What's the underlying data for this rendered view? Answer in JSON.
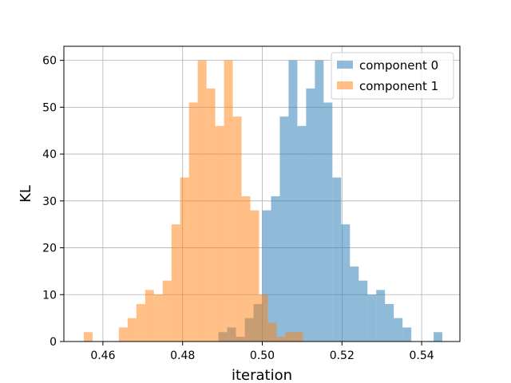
{
  "chart_data": {
    "type": "histogram",
    "title": "",
    "xlabel": "iteration",
    "ylabel": "KL",
    "xlim": [
      0.4502,
      0.5496
    ],
    "ylim": [
      0,
      63
    ],
    "xticks": [
      "0.46",
      "0.48",
      "0.50",
      "0.52",
      "0.54"
    ],
    "yticks": [
      "0",
      "10",
      "20",
      "30",
      "40",
      "50",
      "60"
    ],
    "grid": true,
    "legend_position": "upper right",
    "bin_width": 0.0022,
    "series": [
      {
        "name": "component 0",
        "color": "#1f77b4",
        "opacity": 0.5,
        "bins": [
          [
            0.489,
            0.4912,
            2
          ],
          [
            0.4912,
            0.4934,
            3
          ],
          [
            0.4934,
            0.4956,
            1
          ],
          [
            0.4956,
            0.4978,
            5
          ],
          [
            0.4978,
            0.5,
            8
          ],
          [
            0.5,
            0.5022,
            28
          ],
          [
            0.5022,
            0.5044,
            31
          ],
          [
            0.5044,
            0.5066,
            48
          ],
          [
            0.5066,
            0.5088,
            60
          ],
          [
            0.5088,
            0.511,
            46
          ],
          [
            0.511,
            0.5132,
            54
          ],
          [
            0.5132,
            0.5154,
            60
          ],
          [
            0.5154,
            0.5176,
            51
          ],
          [
            0.5176,
            0.5198,
            35
          ],
          [
            0.5198,
            0.522,
            25
          ],
          [
            0.522,
            0.5242,
            16
          ],
          [
            0.5242,
            0.5264,
            13
          ],
          [
            0.5264,
            0.5286,
            10
          ],
          [
            0.5286,
            0.5308,
            11
          ],
          [
            0.5308,
            0.533,
            8
          ],
          [
            0.533,
            0.5352,
            5
          ],
          [
            0.5352,
            0.5374,
            3
          ],
          [
            0.543,
            0.5452,
            2
          ]
        ]
      },
      {
        "name": "component 1",
        "color": "#ff7f0e",
        "opacity": 0.5,
        "bins": [
          [
            0.4552,
            0.4574,
            2
          ],
          [
            0.464,
            0.4662,
            3
          ],
          [
            0.4662,
            0.4684,
            5
          ],
          [
            0.4684,
            0.4706,
            8
          ],
          [
            0.4706,
            0.4728,
            11
          ],
          [
            0.4728,
            0.475,
            10
          ],
          [
            0.475,
            0.4772,
            13
          ],
          [
            0.4772,
            0.4794,
            25
          ],
          [
            0.4794,
            0.4816,
            35
          ],
          [
            0.4816,
            0.4838,
            51
          ],
          [
            0.4838,
            0.486,
            60
          ],
          [
            0.486,
            0.4882,
            54
          ],
          [
            0.4882,
            0.4904,
            46
          ],
          [
            0.4904,
            0.4926,
            60
          ],
          [
            0.4926,
            0.4948,
            48
          ],
          [
            0.4948,
            0.497,
            31
          ],
          [
            0.497,
            0.4992,
            28
          ],
          [
            0.4992,
            0.5014,
            10
          ],
          [
            0.5014,
            0.5036,
            4
          ],
          [
            0.5036,
            0.5058,
            1
          ],
          [
            0.5058,
            0.508,
            2
          ],
          [
            0.508,
            0.5102,
            2
          ]
        ]
      }
    ]
  }
}
